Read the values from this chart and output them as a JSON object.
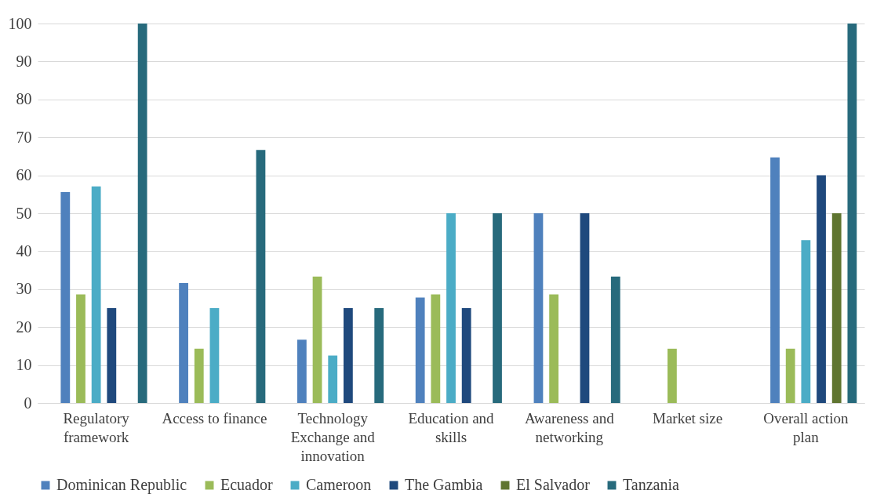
{
  "chart_data": {
    "type": "bar",
    "categories": [
      "Regulatory framework",
      "Access to finance",
      "Technology Exchange and innovation",
      "Education and skills",
      "Awareness and networking",
      "Market size",
      "Overall action plan"
    ],
    "series": [
      {
        "name": "Dominican Republic",
        "color": "#4f81bd",
        "values": [
          55.6,
          31.6,
          16.7,
          27.8,
          50,
          0,
          64.7
        ]
      },
      {
        "name": "Ecuador",
        "color": "#9bbb59",
        "values": [
          28.6,
          14.3,
          33.3,
          28.6,
          28.6,
          14.3,
          14.3
        ]
      },
      {
        "name": "Cameroon",
        "color": "#4bacc6",
        "values": [
          57.1,
          25,
          12.5,
          50,
          0,
          0,
          42.9
        ]
      },
      {
        "name": "The Gambia",
        "color": "#1f497d",
        "values": [
          25,
          0,
          25,
          25,
          50,
          0,
          60
        ]
      },
      {
        "name": "El Salvador",
        "color": "#5f7530",
        "values": [
          0,
          0,
          0,
          0,
          0,
          0,
          50
        ]
      },
      {
        "name": "Tanzania",
        "color": "#276a7c",
        "values": [
          100,
          66.7,
          25,
          50,
          33.3,
          0,
          100
        ]
      }
    ],
    "ylim": [
      0,
      100
    ],
    "yticks": [
      0,
      10,
      20,
      30,
      40,
      50,
      60,
      70,
      80,
      90,
      100
    ],
    "grid": "y",
    "legend": "bottom"
  }
}
